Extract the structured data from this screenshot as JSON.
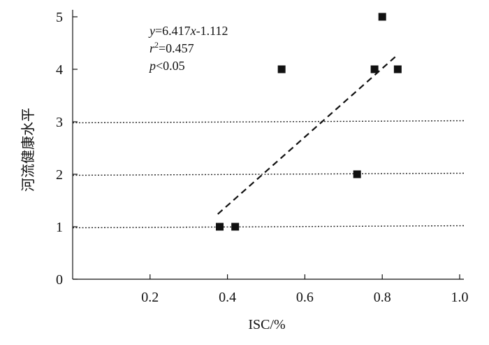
{
  "chart_data": {
    "type": "scatter",
    "xlabel": "ISC/%",
    "ylabel": "河流健康水平",
    "xlim": [
      0,
      1.0
    ],
    "ylim": [
      0,
      5
    ],
    "x_ticks": [
      "0.2",
      "0.4",
      "0.6",
      "0.8",
      "1.0"
    ],
    "y_ticks": [
      "0",
      "1",
      "2",
      "3",
      "4",
      "5"
    ],
    "grid": "dotted horizontal lines at y = 1, 2, 3",
    "points": [
      {
        "x": 0.38,
        "y": 1
      },
      {
        "x": 0.42,
        "y": 1
      },
      {
        "x": 0.54,
        "y": 4
      },
      {
        "x": 0.735,
        "y": 2
      },
      {
        "x": 0.78,
        "y": 4
      },
      {
        "x": 0.8,
        "y": 5
      },
      {
        "x": 0.84,
        "y": 4
      }
    ],
    "regression": {
      "slope": 6.417,
      "intercept": -1.112,
      "x_range": [
        0.375,
        0.84
      ],
      "style": "dashed"
    },
    "annotations": {
      "equation": {
        "var": "y",
        "rest": "=6.417",
        "var2": "x",
        "tail": "-1.112"
      },
      "r2": {
        "var": "r",
        "sup": "2",
        "rest": "=0.457"
      },
      "p": {
        "var": "p",
        "rest": "<0.05"
      }
    },
    "colors": {
      "marker": "#111111",
      "line": "#111111",
      "grid": "#222222"
    }
  }
}
